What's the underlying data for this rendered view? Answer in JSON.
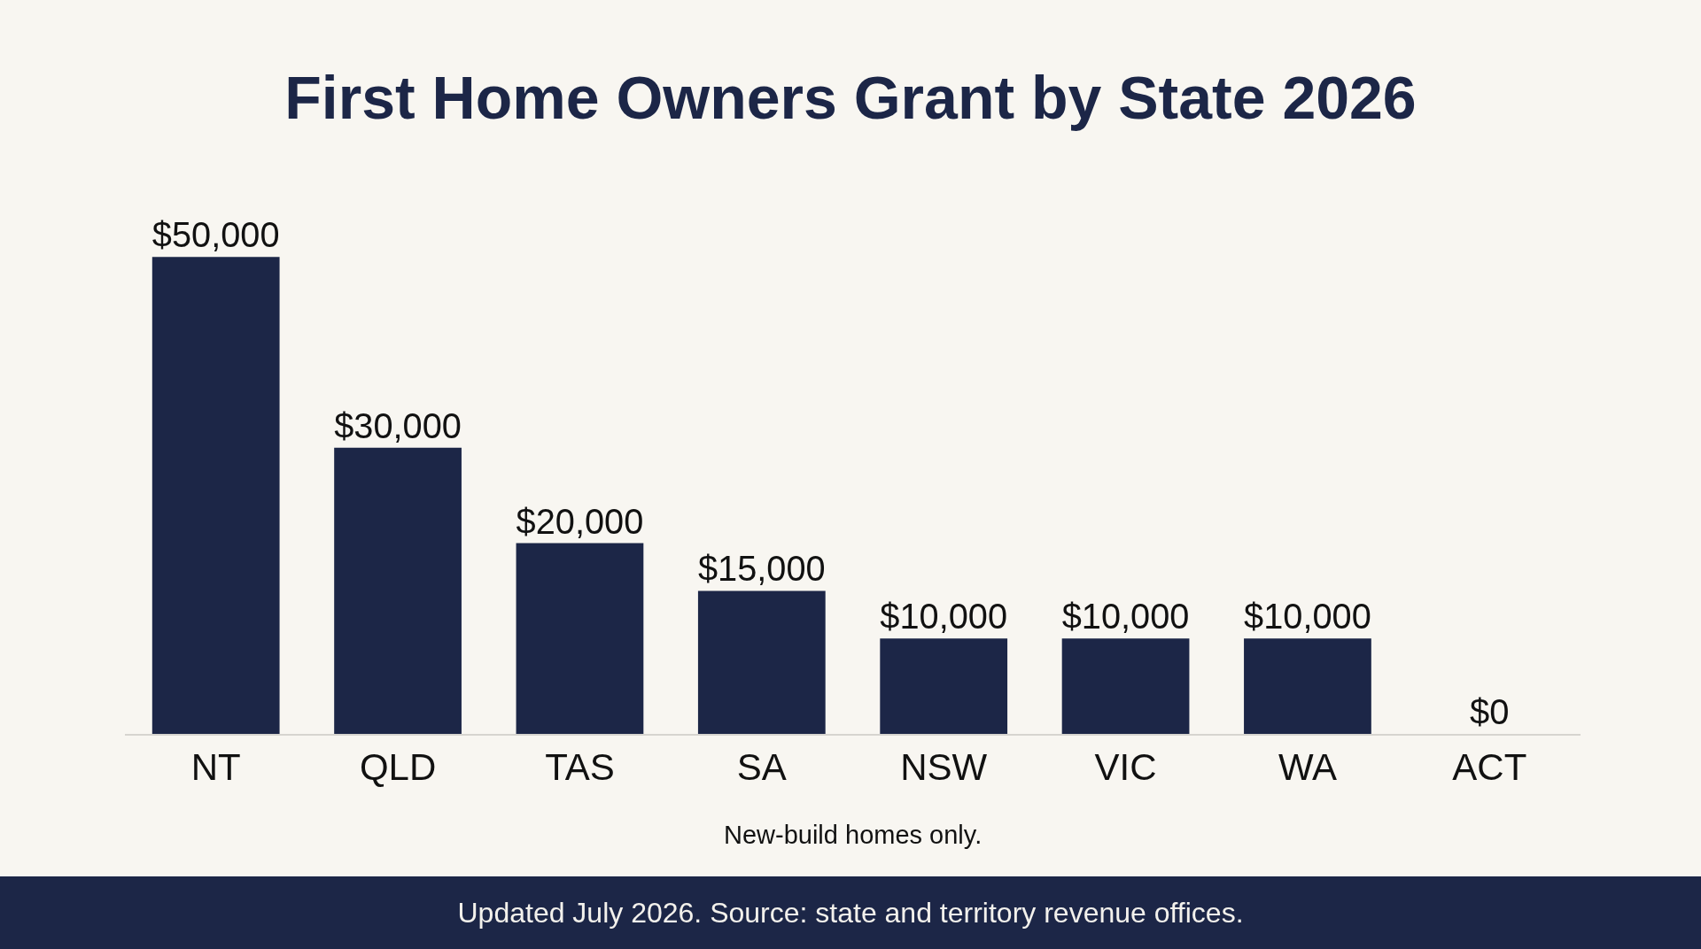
{
  "chart_data": {
    "type": "bar",
    "title": "First Home Owners Grant by State 2026",
    "categories": [
      "NT",
      "QLD",
      "TAS",
      "SA",
      "NSW",
      "VIC",
      "WA",
      "ACT"
    ],
    "values": [
      50000,
      30000,
      20000,
      15000,
      10000,
      10000,
      10000,
      0
    ],
    "value_labels": [
      "$50,000",
      "$30,000",
      "$20,000",
      "$15,000",
      "$10,000",
      "$10,000",
      "$10,000",
      "$0"
    ],
    "color": "#1c2647",
    "grid": false,
    "annotations": [
      "New-build homes only.",
      "Updated July 2026. Source: state and territory revenue offices."
    ]
  }
}
